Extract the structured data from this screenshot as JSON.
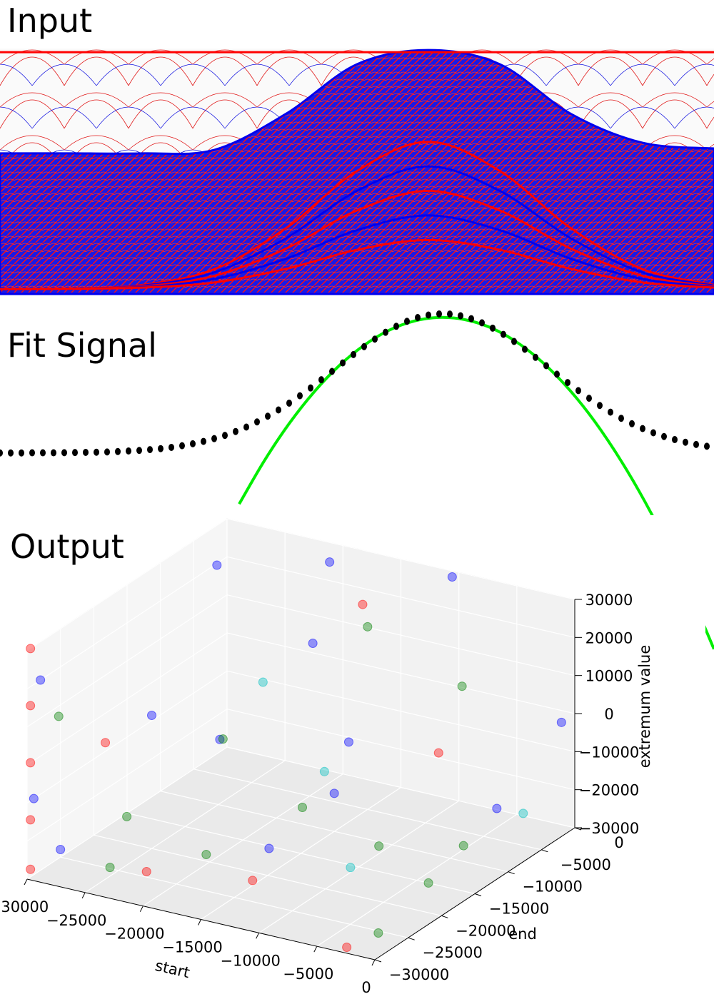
{
  "chart_data": [
    {
      "type": "lines",
      "title": "Input",
      "xlim": [
        0,
        1000
      ],
      "ylim": [
        0,
        1
      ],
      "x": [
        0,
        100,
        200,
        300,
        400,
        500,
        600,
        700,
        800,
        900,
        1000
      ],
      "series": [
        {
          "color": "#0000ee",
          "fill": true,
          "values": [
            0.573,
            0.573,
            0.573,
            0.587,
            0.733,
            0.936,
            0.994,
            0.936,
            0.733,
            0.616,
            0.593
          ]
        },
        {
          "color": "#ff0000",
          "values": [
            0.985,
            0.985,
            0.985,
            0.985,
            0.985,
            0.985,
            0.985,
            0.985,
            0.985,
            0.985,
            0.985
          ]
        },
        {
          "color": "#ff0000",
          "values": [
            0.02,
            0.022,
            0.037,
            0.101,
            0.267,
            0.501,
            0.62,
            0.501,
            0.267,
            0.101,
            0.037
          ]
        },
        {
          "color": "#0000ee",
          "values": [
            0.02,
            0.022,
            0.034,
            0.088,
            0.226,
            0.42,
            0.52,
            0.42,
            0.226,
            0.088,
            0.034
          ]
        },
        {
          "color": "#ff0000",
          "values": [
            0.02,
            0.022,
            0.031,
            0.074,
            0.184,
            0.34,
            0.42,
            0.34,
            0.184,
            0.074,
            0.031
          ]
        },
        {
          "color": "#0000ee",
          "values": [
            0.02,
            0.021,
            0.028,
            0.061,
            0.143,
            0.26,
            0.32,
            0.26,
            0.143,
            0.061,
            0.028
          ]
        },
        {
          "color": "#ff0000",
          "values": [
            0.02,
            0.021,
            0.026,
            0.047,
            0.102,
            0.18,
            0.22,
            0.18,
            0.102,
            0.047,
            0.026
          ]
        }
      ]
    },
    {
      "type": "signal",
      "title": "Fit Signal",
      "xlim": [
        0,
        1000
      ],
      "ylim": [
        -1.5,
        1.05
      ],
      "series": [
        {
          "type": "line",
          "color": "#00ee00",
          "x": [
            335,
            370,
            405,
            440,
            475,
            510,
            545,
            580,
            615,
            650,
            685,
            720,
            755,
            790,
            825,
            860,
            895,
            930,
            965,
            1000
          ],
          "values": [
            -0.367,
            -0.058,
            0.211,
            0.439,
            0.627,
            0.774,
            0.882,
            0.948,
            0.974,
            0.959,
            0.905,
            0.809,
            0.673,
            0.497,
            0.281,
            0.023,
            -0.274,
            -0.612,
            -0.991,
            -1.41
          ]
        },
        {
          "type": "scatter",
          "color": "#000000",
          "x": [
            0,
            15,
            30,
            45,
            60,
            75,
            90,
            105,
            120,
            135,
            150,
            165,
            180,
            195,
            210,
            225,
            240,
            255,
            270,
            285,
            300,
            315,
            330,
            345,
            360,
            375,
            390,
            405,
            420,
            435,
            450,
            465,
            480,
            495,
            510,
            525,
            540,
            555,
            570,
            585,
            600,
            615,
            630,
            645,
            660,
            675,
            690,
            705,
            720,
            735,
            750,
            765,
            780,
            795,
            810,
            825,
            840,
            855,
            870,
            885,
            900,
            915,
            930,
            945,
            960,
            975,
            990
          ],
          "values": [
            0,
            0,
            0,
            0.001,
            0.001,
            0.001,
            0.002,
            0.003,
            0.004,
            0.005,
            0.007,
            0.01,
            0.014,
            0.018,
            0.024,
            0.031,
            0.04,
            0.052,
            0.066,
            0.083,
            0.103,
            0.126,
            0.154,
            0.186,
            0.223,
            0.264,
            0.309,
            0.358,
            0.411,
            0.467,
            0.526,
            0.586,
            0.647,
            0.707,
            0.764,
            0.818,
            0.867,
            0.91,
            0.946,
            0.973,
            0.991,
            0.999,
            0.998,
            0.986,
            0.965,
            0.935,
            0.897,
            0.852,
            0.801,
            0.745,
            0.687,
            0.627,
            0.566,
            0.506,
            0.448,
            0.393,
            0.341,
            0.293,
            0.249,
            0.21,
            0.175,
            0.145,
            0.118,
            0.096,
            0.077,
            0.061,
            0.048
          ]
        }
      ]
    },
    {
      "type": "scatter3d",
      "title": "Output",
      "xlabel": "start",
      "ylabel": "end",
      "zlabel": "extremum value",
      "xlim": [
        -30000,
        0
      ],
      "ylim": [
        -30000,
        0
      ],
      "zlim": [
        -30000,
        30000
      ],
      "xticks": [
        {
          "value": -30000,
          "label": "−30000"
        },
        {
          "value": -25000,
          "label": "−25000"
        },
        {
          "value": -20000,
          "label": "−20000"
        },
        {
          "value": -15000,
          "label": "−15000"
        },
        {
          "value": -10000,
          "label": "−10000"
        },
        {
          "value": -5000,
          "label": "−5000"
        },
        0
      ],
      "yticks": [
        0,
        {
          "value": -5000,
          "label": "−5000"
        },
        {
          "value": -10000,
          "label": "−10000"
        },
        {
          "value": -15000,
          "label": "−15000"
        },
        {
          "value": -20000,
          "label": "−20000"
        },
        {
          "value": -25000,
          "label": "−25000"
        },
        {
          "value": -30000,
          "label": "−30000"
        }
      ],
      "zticks": [
        30000,
        20000,
        10000,
        0,
        {
          "value": -10000,
          "label": "−10000"
        },
        {
          "value": -20000,
          "label": "−20000"
        },
        {
          "value": -30000,
          "label": "−30000"
        }
      ],
      "grid": true,
      "series": [
        {
          "color": "#0000ff",
          "x": [
            -30000,
            -30000,
            -28000,
            -20000,
            -10000,
            -25000,
            -15000,
            -5000,
            -30000,
            -22000,
            -8000,
            -12000,
            0,
            -18000
          ],
          "y": [
            -28000,
            -29000,
            -5000,
            -2000,
            -1000,
            -20000,
            -10000,
            -3000,
            -25000,
            -15000,
            -20000,
            -25000,
            -2000,
            -8000
          ],
          "z": [
            20000,
            -10000,
            25000,
            28000,
            30000,
            5000,
            -20000,
            -25000,
            -28000,
            -5000,
            10000,
            -15000,
            0,
            15000
          ]
        },
        {
          "color": "#008000",
          "x": [
            -29000,
            -26000,
            -20000,
            -10000,
            -5000,
            -2000,
            -15000,
            -24000,
            -8000,
            -12000,
            -4000,
            -18000
          ],
          "y": [
            -27000,
            -22000,
            -18000,
            -12000,
            -8000,
            -26000,
            -5000,
            -28000,
            -3000,
            -20000,
            -15000,
            -24000
          ],
          "z": [
            10000,
            -20000,
            0,
            -28000,
            -29000,
            -29000,
            18000,
            -25000,
            5000,
            -10000,
            -30000,
            -22000
          ]
        },
        {
          "color": "#ff0000",
          "x": [
            -30000,
            -30000,
            -30000,
            -30000,
            -30000,
            -29000,
            -22000,
            -14000,
            -3000,
            -6000,
            -16000
          ],
          "y": [
            -29500,
            -29500,
            -29500,
            -29500,
            -29500,
            -20000,
            -26000,
            -24000,
            -29000,
            -10000,
            -4000
          ],
          "z": [
            30000,
            15000,
            0,
            -15000,
            -28000,
            -5000,
            -27000,
            -26000,
            -30000,
            -3000,
            22000
          ]
        },
        {
          "color": "#00bfbf",
          "x": [
            -20000,
            -17000,
            -9000,
            -1000
          ],
          "y": [
            -12000,
            -8000,
            -18000,
            -6000
          ],
          "z": [
            8000,
            -18000,
            -26000,
            -20000
          ]
        }
      ]
    }
  ]
}
